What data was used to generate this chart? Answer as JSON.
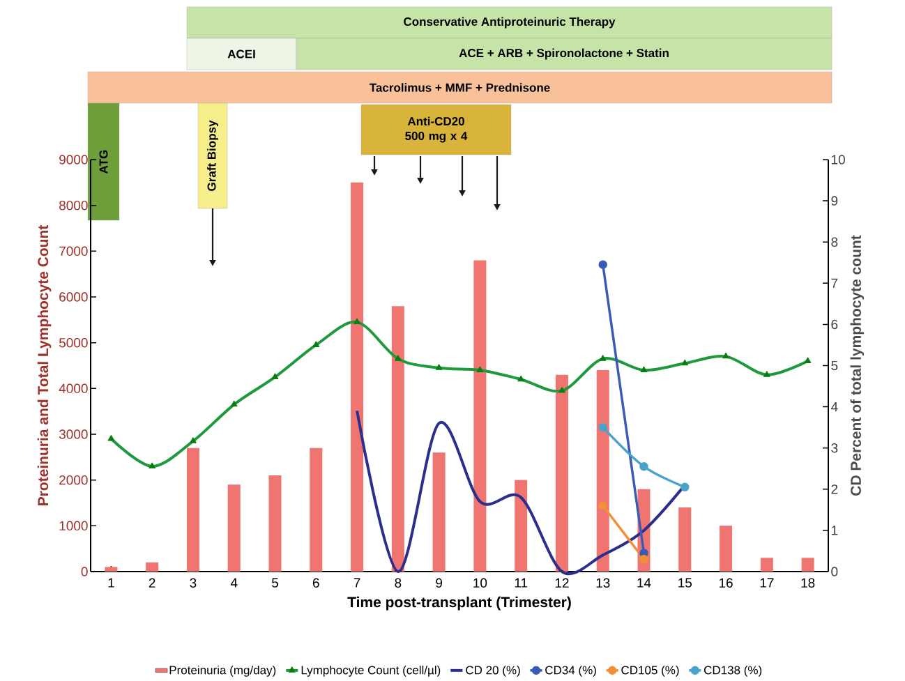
{
  "chart_data": {
    "type": "bar",
    "xlabel": "Time post-transplant (Trimester)",
    "ylabel": "Proteinuria and Total Lymphocyte Count",
    "y2label": "CD Percent of total lymphocyte count",
    "categories": [
      "1",
      "2",
      "3",
      "4",
      "5",
      "6",
      "7",
      "8",
      "9",
      "10",
      "11",
      "12",
      "13",
      "14",
      "15",
      "16",
      "17",
      "18"
    ],
    "ylim": [
      0,
      9000
    ],
    "yticks": [
      0,
      1000,
      2000,
      3000,
      4000,
      5000,
      6000,
      7000,
      8000,
      9000
    ],
    "y2lim": [
      0,
      10
    ],
    "y2ticks": [
      0,
      1,
      2,
      3,
      4,
      5,
      6,
      7,
      8,
      9,
      10
    ],
    "legend": "bottom",
    "series": [
      {
        "name": "Proteinuria (mg/day)",
        "color": "#f07470",
        "values": [
          100,
          200,
          2700,
          1900,
          2100,
          2700,
          8500,
          5800,
          2600,
          6800,
          2000,
          4300,
          4400,
          1800,
          1400,
          1000,
          300,
          300
        ]
      },
      {
        "name": "Lymphocyte Count (cell/µl)",
        "type": "line",
        "color": "#1e9a3c",
        "marker": "triangle",
        "values": [
          2900,
          2300,
          2850,
          3650,
          4250,
          4950,
          5450,
          4650,
          4450,
          4400,
          4200,
          3950,
          4650,
          4400,
          4550,
          4700,
          4300,
          4600
        ]
      },
      {
        "name": "CD 20 (%)",
        "type": "line",
        "color": "#2b2e8c",
        "marker": "none",
        "axis": "y2",
        "values": [
          null,
          null,
          null,
          null,
          null,
          null,
          3.9,
          0,
          3.6,
          1.7,
          1.8,
          0,
          0.4,
          1.0,
          2.1,
          null,
          null,
          null
        ]
      },
      {
        "name": "CD34 (%)",
        "type": "line",
        "color": "#3a5bb5",
        "marker": "circle",
        "axis": "y2",
        "values": [
          null,
          null,
          null,
          null,
          null,
          null,
          null,
          null,
          null,
          null,
          null,
          null,
          7.45,
          0.45,
          null,
          null,
          null,
          null
        ]
      },
      {
        "name": "CD105 (%)",
        "type": "line",
        "color": "#f0913a",
        "marker": "circle",
        "axis": "y2",
        "values": [
          null,
          null,
          null,
          null,
          null,
          null,
          null,
          null,
          null,
          null,
          null,
          null,
          1.6,
          0.3,
          null,
          null,
          null,
          null
        ]
      },
      {
        "name": "CD138 (%)",
        "type": "line",
        "color": "#4aa3c8",
        "marker": "circle",
        "axis": "y2",
        "values": [
          null,
          null,
          null,
          null,
          null,
          null,
          null,
          null,
          null,
          null,
          null,
          null,
          3.5,
          2.55,
          2.05,
          null,
          null,
          null
        ]
      }
    ],
    "annotations": [
      "Conservative Antiproteinuric Therapy",
      "ACEI",
      "ACE + ARB +  Spironolactone + Statin",
      "Tacrolimus + MMF + Prednisone",
      "ATG",
      "Graft Biopsy",
      "Anti-CD20 500 mg x 4"
    ]
  }
}
